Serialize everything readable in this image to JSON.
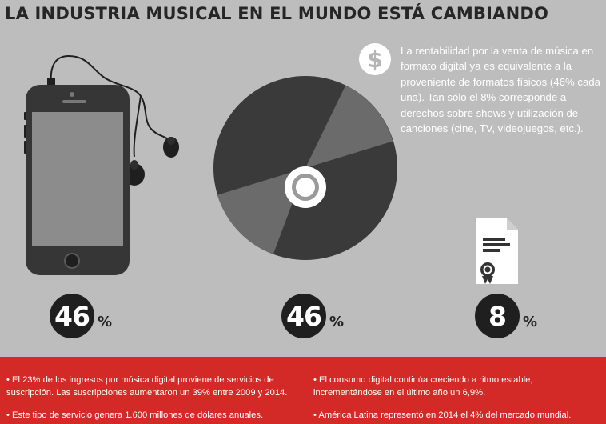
{
  "title": "LA INDUSTRIA MUSICAL EN EL MUNDO ESTÁ CAMBIANDO",
  "info": {
    "icon": "dollar-icon",
    "symbol": "$",
    "text": "La rentabilidad por la venta de música en formato digital ya es equivalente  a la proveniente de formatos físicos (46% cada una).  Tan sólo el 8% corresponde a derechos sobre shows y utilización de canciones (cine, TV, videojuegos, etc.)."
  },
  "stats": [
    {
      "icon": "smartphone-icon",
      "value": "46",
      "unit": "%"
    },
    {
      "icon": "compact-disc-icon",
      "value": "46",
      "unit": "%"
    },
    {
      "icon": "certificate-document-icon",
      "value": "8",
      "unit": "%"
    }
  ],
  "share_percent": {
    "digital": 46,
    "physical": 46,
    "rights": 8
  },
  "bullets_left": [
    "• El 23% de los ingresos por música digital proviene de servicios de",
    "suscripción. Las suscripciones aumentaron un 39% entre 2009 y 2014.",
    "• Este tipo de servicio genera 1.600 millones de dólares anuales."
  ],
  "bullets_right": [
    "• El consumo digital continúa creciendo a ritmo estable,",
    "incrementándose en el último año un 6,9%.",
    "• América Latina representó en 2014 el 4% del mercado mundial."
  ],
  "colors": {
    "background": "#bdbdbd",
    "dark": "#1f1f1f",
    "accent_red": "#d42a27",
    "white": "#ffffff"
  }
}
